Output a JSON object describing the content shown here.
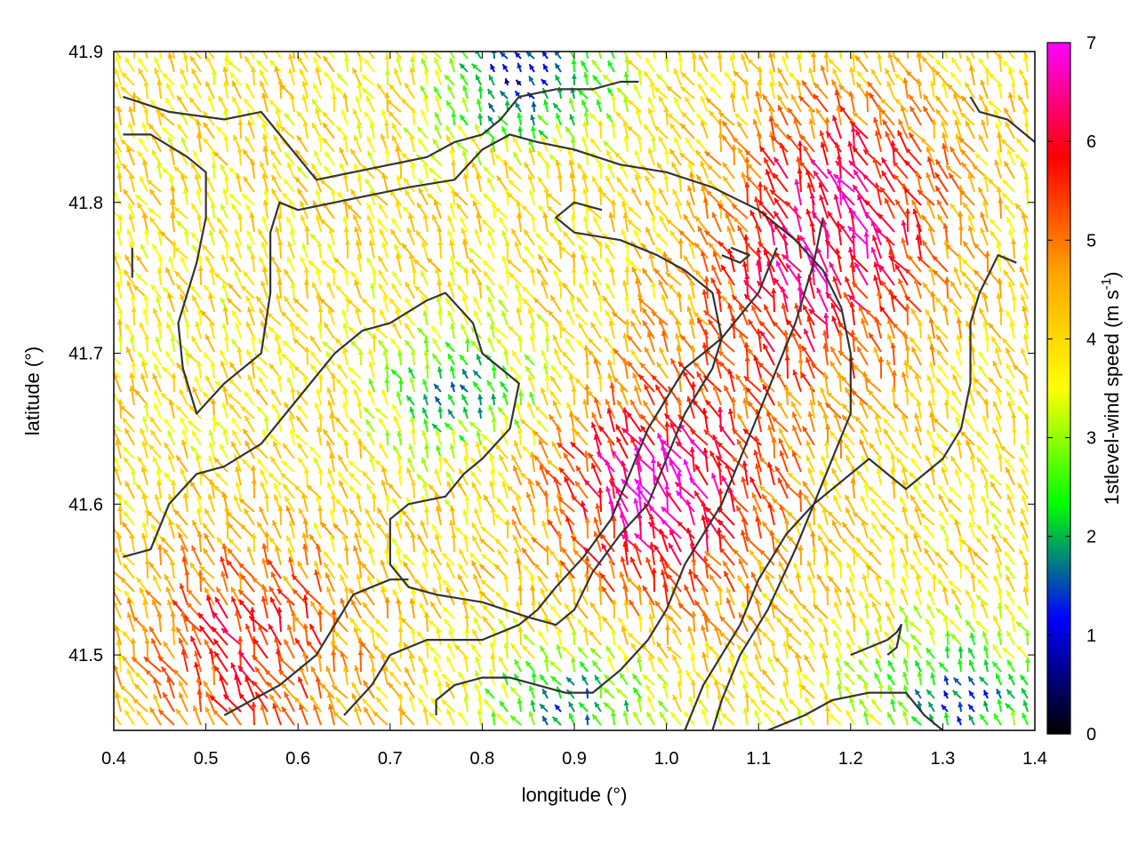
{
  "chart_data": {
    "type": "vector_field",
    "xlabel": "longitude (°)",
    "ylabel": "latitude (°)",
    "xlim": [
      0.4,
      1.4
    ],
    "ylim": [
      41.45,
      41.9
    ],
    "xticks": [
      "0.4",
      "0.5",
      "0.6",
      "0.7",
      "0.8",
      "0.9",
      "1.0",
      "1.1",
      "1.2",
      "1.3",
      "1.4"
    ],
    "yticks": [
      "41.5",
      "41.6",
      "41.7",
      "41.8",
      "41.9"
    ],
    "colorbar": {
      "label": "1stlevel-wind speed (m s-1)",
      "label_main": "1stlevel-wind speed (m s",
      "label_sup": "-1",
      "label_end": ")",
      "range": [
        0,
        7
      ],
      "ticks": [
        "0",
        "1",
        "2",
        "3",
        "4",
        "5",
        "6",
        "7"
      ],
      "colors": [
        "#000000",
        "#0000ff",
        "#00ff00",
        "#ffff00",
        "#ffa500",
        "#ff0000",
        "#ff00ff"
      ]
    },
    "wind_field": {
      "dominant_direction": "from south-east, pointing north-west",
      "speed_range": [
        0.5,
        7
      ],
      "high_speed_regions": [
        {
          "center": [
            1.0,
            41.6
          ],
          "speed": 6.8
        },
        {
          "center": [
            0.55,
            41.5
          ],
          "speed": 5.8
        },
        {
          "center": [
            1.15,
            41.72
          ],
          "speed": 5.5
        },
        {
          "center": [
            1.2,
            41.8
          ],
          "speed": 6.0
        }
      ],
      "low_speed_regions": [
        {
          "center": [
            0.85,
            41.88
          ],
          "speed": 1.0
        },
        {
          "center": [
            0.78,
            41.67
          ],
          "speed": 2.0
        },
        {
          "center": [
            1.32,
            41.47
          ],
          "speed": 1.5
        },
        {
          "center": [
            0.9,
            41.46
          ],
          "speed": 1.8
        }
      ]
    },
    "contours": [
      [
        [
          0.41,
          41.87
        ],
        [
          0.46,
          41.86
        ],
        [
          0.52,
          41.855
        ],
        [
          0.56,
          41.86
        ],
        [
          0.6,
          41.83
        ],
        [
          0.62,
          41.815
        ],
        [
          0.66,
          41.82
        ],
        [
          0.7,
          41.825
        ],
        [
          0.74,
          41.83
        ],
        [
          0.77,
          41.84
        ],
        [
          0.8,
          41.845
        ],
        [
          0.82,
          41.855
        ],
        [
          0.84,
          41.87
        ],
        [
          0.88,
          41.875
        ],
        [
          0.92,
          41.875
        ],
        [
          0.95,
          41.88
        ],
        [
          0.97,
          41.88
        ]
      ],
      [
        [
          0.41,
          41.845
        ],
        [
          0.44,
          41.845
        ],
        [
          0.48,
          41.83
        ],
        [
          0.5,
          41.82
        ],
        [
          0.5,
          41.79
        ],
        [
          0.49,
          41.76
        ],
        [
          0.48,
          41.74
        ],
        [
          0.47,
          41.72
        ],
        [
          0.475,
          41.69
        ],
        [
          0.49,
          41.66
        ],
        [
          0.52,
          41.68
        ],
        [
          0.56,
          41.7
        ],
        [
          0.57,
          41.74
        ],
        [
          0.57,
          41.78
        ],
        [
          0.58,
          41.8
        ],
        [
          0.6,
          41.795
        ],
        [
          0.64,
          41.8
        ],
        [
          0.68,
          41.805
        ],
        [
          0.72,
          41.81
        ],
        [
          0.77,
          41.815
        ],
        [
          0.8,
          41.835
        ],
        [
          0.83,
          41.845
        ],
        [
          0.86,
          41.84
        ],
        [
          0.9,
          41.835
        ],
        [
          0.95,
          41.825
        ],
        [
          1.0,
          41.82
        ],
        [
          1.05,
          41.81
        ],
        [
          1.1,
          41.795
        ],
        [
          1.14,
          41.775
        ],
        [
          1.17,
          41.755
        ],
        [
          1.19,
          41.73
        ],
        [
          1.2,
          41.7
        ],
        [
          1.2,
          41.66
        ],
        [
          1.18,
          41.63
        ],
        [
          1.16,
          41.6
        ],
        [
          1.14,
          41.57
        ],
        [
          1.11,
          41.53
        ],
        [
          1.08,
          41.5
        ],
        [
          1.06,
          41.47
        ],
        [
          1.05,
          41.45
        ]
      ],
      [
        [
          0.41,
          41.565
        ],
        [
          0.44,
          41.57
        ],
        [
          0.46,
          41.6
        ],
        [
          0.49,
          41.62
        ],
        [
          0.52,
          41.625
        ],
        [
          0.56,
          41.64
        ],
        [
          0.6,
          41.67
        ],
        [
          0.64,
          41.7
        ],
        [
          0.67,
          41.715
        ],
        [
          0.7,
          41.72
        ],
        [
          0.74,
          41.735
        ],
        [
          0.76,
          41.74
        ],
        [
          0.79,
          41.72
        ],
        [
          0.8,
          41.7
        ],
        [
          0.82,
          41.69
        ],
        [
          0.84,
          41.68
        ],
        [
          0.83,
          41.65
        ],
        [
          0.8,
          41.63
        ],
        [
          0.78,
          41.62
        ],
        [
          0.76,
          41.605
        ],
        [
          0.72,
          41.6
        ],
        [
          0.7,
          41.59
        ],
        [
          0.7,
          41.56
        ],
        [
          0.72,
          41.545
        ],
        [
          0.75,
          41.54
        ],
        [
          0.8,
          41.535
        ],
        [
          0.85,
          41.525
        ],
        [
          0.88,
          41.52
        ],
        [
          0.9,
          41.53
        ],
        [
          0.92,
          41.555
        ],
        [
          0.95,
          41.58
        ],
        [
          0.98,
          41.6
        ],
        [
          1.0,
          41.63
        ],
        [
          1.02,
          41.66
        ],
        [
          1.05,
          41.69
        ],
        [
          1.06,
          41.71
        ],
        [
          1.05,
          41.74
        ],
        [
          1.02,
          41.755
        ],
        [
          0.99,
          41.765
        ],
        [
          0.95,
          41.775
        ],
        [
          0.9,
          41.78
        ],
        [
          0.88,
          41.79
        ],
        [
          0.9,
          41.8
        ],
        [
          0.93,
          41.795
        ]
      ],
      [
        [
          0.52,
          41.46
        ],
        [
          0.55,
          41.47
        ],
        [
          0.58,
          41.48
        ],
        [
          0.6,
          41.49
        ],
        [
          0.62,
          41.5
        ],
        [
          0.64,
          41.52
        ],
        [
          0.66,
          41.54
        ],
        [
          0.7,
          41.55
        ],
        [
          0.72,
          41.55
        ]
      ],
      [
        [
          0.65,
          41.46
        ],
        [
          0.68,
          41.48
        ],
        [
          0.7,
          41.5
        ],
        [
          0.74,
          41.51
        ],
        [
          0.8,
          41.51
        ],
        [
          0.84,
          41.52
        ],
        [
          0.86,
          41.53
        ],
        [
          0.88,
          41.545
        ],
        [
          0.91,
          41.565
        ],
        [
          0.94,
          41.59
        ],
        [
          0.96,
          41.62
        ],
        [
          0.98,
          41.65
        ],
        [
          1.0,
          41.67
        ],
        [
          1.02,
          41.69
        ],
        [
          1.04,
          41.7
        ],
        [
          1.06,
          41.71
        ],
        [
          1.1,
          41.74
        ],
        [
          1.12,
          41.77
        ]
      ],
      [
        [
          0.75,
          41.46
        ],
        [
          0.75,
          41.47
        ],
        [
          0.77,
          41.48
        ],
        [
          0.8,
          41.485
        ],
        [
          0.83,
          41.485
        ],
        [
          0.86,
          41.48
        ],
        [
          0.89,
          41.475
        ],
        [
          0.92,
          41.475
        ],
        [
          0.95,
          41.49
        ],
        [
          0.98,
          41.51
        ],
        [
          1.0,
          41.53
        ],
        [
          1.02,
          41.56
        ],
        [
          1.04,
          41.58
        ],
        [
          1.06,
          41.6
        ],
        [
          1.08,
          41.63
        ],
        [
          1.1,
          41.66
        ],
        [
          1.12,
          41.69
        ],
        [
          1.14,
          41.72
        ],
        [
          1.16,
          41.76
        ],
        [
          1.17,
          41.79
        ]
      ],
      [
        [
          1.02,
          41.45
        ],
        [
          1.04,
          41.48
        ],
        [
          1.06,
          41.5
        ],
        [
          1.08,
          41.52
        ],
        [
          1.1,
          41.55
        ],
        [
          1.13,
          41.58
        ],
        [
          1.16,
          41.6
        ],
        [
          1.2,
          41.62
        ],
        [
          1.22,
          41.63
        ],
        [
          1.24,
          41.62
        ],
        [
          1.26,
          41.61
        ],
        [
          1.28,
          41.62
        ],
        [
          1.3,
          41.63
        ],
        [
          1.32,
          41.65
        ],
        [
          1.33,
          41.68
        ],
        [
          1.33,
          41.72
        ],
        [
          1.34,
          41.74
        ],
        [
          1.36,
          41.765
        ],
        [
          1.38,
          41.76
        ]
      ],
      [
        [
          1.11,
          41.45
        ],
        [
          1.15,
          41.46
        ],
        [
          1.18,
          41.47
        ],
        [
          1.22,
          41.475
        ],
        [
          1.26,
          41.475
        ],
        [
          1.28,
          41.46
        ],
        [
          1.3,
          41.45
        ]
      ],
      [
        [
          1.2,
          41.5
        ],
        [
          1.22,
          41.505
        ],
        [
          1.24,
          41.51
        ],
        [
          1.25,
          41.515
        ],
        [
          1.255,
          41.52
        ],
        [
          1.25,
          41.505
        ],
        [
          1.24,
          41.5
        ]
      ],
      [
        [
          1.33,
          41.87
        ],
        [
          1.34,
          41.86
        ],
        [
          1.37,
          41.855
        ],
        [
          1.4,
          41.84
        ]
      ],
      [
        [
          0.42,
          41.77
        ],
        [
          0.42,
          41.75
        ]
      ],
      [
        [
          1.06,
          41.765
        ],
        [
          1.08,
          41.76
        ],
        [
          1.09,
          41.765
        ],
        [
          1.07,
          41.77
        ]
      ]
    ]
  }
}
